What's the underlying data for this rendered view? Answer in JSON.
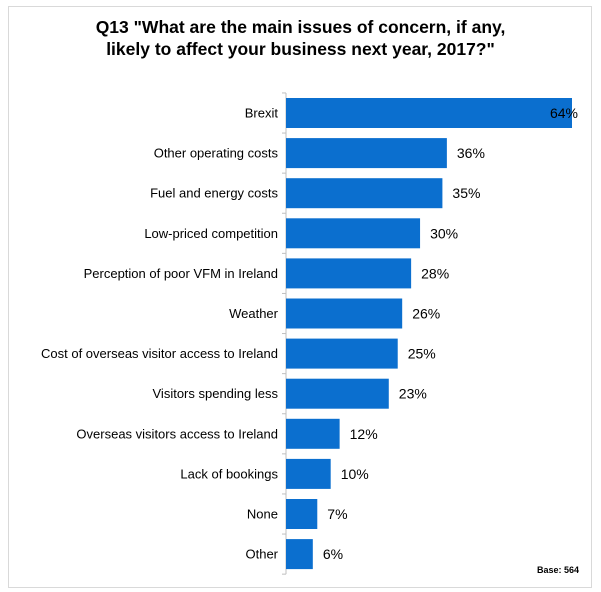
{
  "chart_data": {
    "type": "bar",
    "orientation": "horizontal",
    "title_lines": [
      "Q13 \"What are the main issues of concern, if any,",
      "likely to affect your business next year, 2017?\""
    ],
    "categories": [
      "Brexit",
      "Other operating costs",
      "Fuel and energy costs",
      "Low-priced competition",
      "Perception of poor VFM in Ireland",
      "Weather",
      "Cost of overseas visitor access to Ireland",
      "Visitors spending less",
      "Overseas visitors access to Ireland",
      "Lack of bookings",
      "None",
      "Other"
    ],
    "values": [
      64,
      36,
      35,
      30,
      28,
      26,
      25,
      23,
      12,
      10,
      7,
      6
    ],
    "value_labels": [
      "64%",
      "36%",
      "35%",
      "30%",
      "28%",
      "26%",
      "25%",
      "23%",
      "12%",
      "10%",
      "7%",
      "6%"
    ],
    "xlim": [
      0,
      64
    ],
    "bar_color": "#0b6fcf",
    "grid": false,
    "legend": "none",
    "note": "Base: 564"
  }
}
